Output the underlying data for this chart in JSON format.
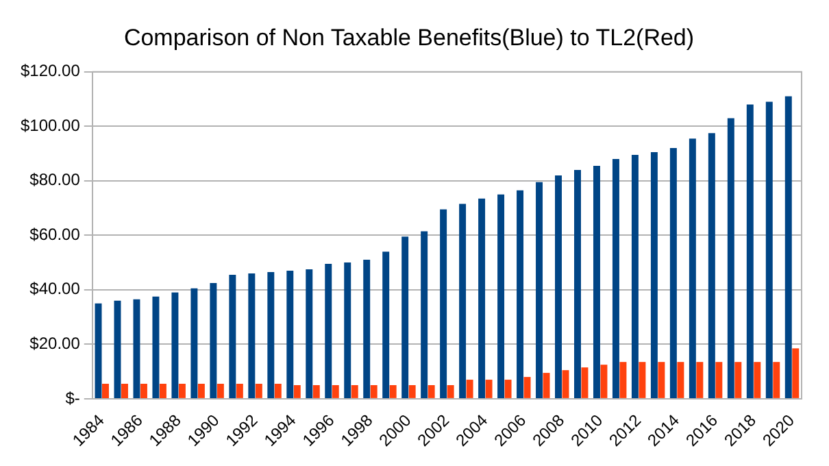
{
  "chart_data": {
    "type": "bar",
    "title": "Comparison of Non Taxable Benefits(Blue) to TL2(Red)",
    "categories": [
      "1984",
      null,
      "1986",
      null,
      "1988",
      null,
      "1990",
      null,
      "1992",
      null,
      "1994",
      null,
      "1996",
      null,
      "1998",
      null,
      "2000",
      null,
      "2002",
      null,
      "2004",
      null,
      "2006",
      null,
      "2008",
      null,
      "2010",
      null,
      "2012",
      null,
      "2014",
      null,
      "2016",
      null,
      "2018",
      null,
      "2020"
    ],
    "series": [
      {
        "color": "#004586",
        "values": [
          35,
          36,
          36.5,
          37.5,
          39,
          40.5,
          42.5,
          45.5,
          46,
          46.5,
          47,
          47.5,
          49.5,
          50,
          51,
          54,
          59.5,
          61.5,
          69.5,
          71.5,
          73.5,
          75,
          76.5,
          79.5,
          82,
          84,
          85.5,
          88,
          89.5,
          90.5,
          92,
          95.5,
          97.5,
          103,
          108,
          109,
          111
        ]
      },
      {
        "color": "#ff420e",
        "values": [
          5.5,
          5.5,
          5.5,
          5.5,
          5.5,
          5.5,
          5.5,
          5.5,
          5.5,
          5.5,
          5,
          5,
          5,
          5,
          5,
          5,
          5,
          5,
          5,
          7,
          7,
          7,
          8,
          9.5,
          10.5,
          11.5,
          12.5,
          13.5,
          13.5,
          13.5,
          13.5,
          13.5,
          13.5,
          13.5,
          13.5,
          13.5,
          18.5
        ]
      }
    ],
    "ylim": [
      0,
      120
    ],
    "yticks": [
      {
        "value": 0,
        "label": "$-"
      },
      {
        "value": 20,
        "label": "$20.00"
      },
      {
        "value": 40,
        "label": "$40.00"
      },
      {
        "value": 60,
        "label": "$60.00"
      },
      {
        "value": 80,
        "label": "$80.00"
      },
      {
        "value": 100,
        "label": "$100.00"
      },
      {
        "value": 120,
        "label": "$120.00"
      }
    ],
    "grid": "y",
    "legend": false
  }
}
